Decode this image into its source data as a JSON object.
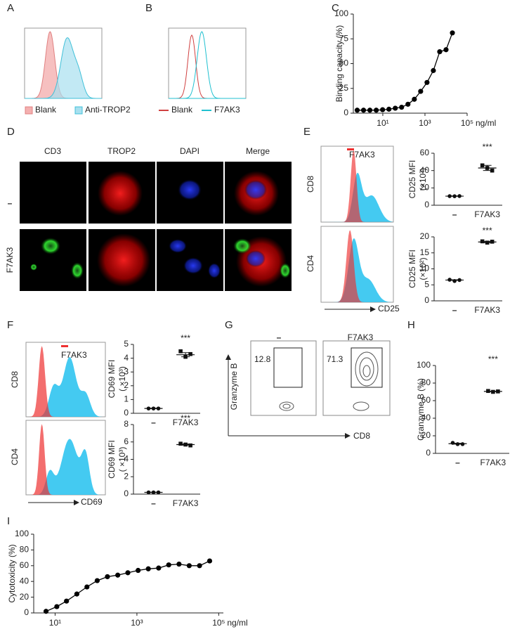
{
  "panel_labels": [
    "A",
    "B",
    "C",
    "D",
    "E",
    "F",
    "G",
    "H",
    "I"
  ],
  "histograms": {
    "A": {
      "legend": [
        "Blank",
        "Anti-TROP2"
      ]
    },
    "B": {
      "legend": [
        "Blank",
        "F7AK3"
      ]
    },
    "E": {
      "legend": "F7AK3",
      "rows": [
        "CD8",
        "CD4"
      ],
      "xlabel": "CD25"
    },
    "F": {
      "legend": "F7AK3",
      "rows": [
        "CD8",
        "CD4"
      ],
      "xlabel": "CD69"
    }
  },
  "microscopy": {
    "columns": [
      "CD3",
      "TROP2",
      "DAPI",
      "Merge"
    ],
    "rows": [
      "–",
      "F7AK3"
    ]
  },
  "flow": {
    "ylabel": "Granzyme B",
    "xlabel": "CD8",
    "plots": [
      {
        "title": "–",
        "gate": "12.8"
      },
      {
        "title": "F7AK3",
        "gate": "71.3"
      }
    ]
  },
  "chart_data": [
    {
      "type": "line",
      "x": [
        0.61,
        1.22,
        2.44,
        4.88,
        9.77,
        19.5,
        39,
        78,
        156,
        313,
        625,
        1250,
        2500,
        5000,
        10000,
        20000
      ],
      "values": [
        3,
        3,
        3,
        3,
        3.5,
        4,
        5,
        6,
        9,
        14,
        22,
        31,
        43,
        62,
        64,
        81
      ],
      "xlim": [
        0.4,
        100000
      ],
      "xticks": [
        {
          "value": 10,
          "label": "10¹"
        },
        {
          "value": 1000,
          "label": "10³"
        },
        {
          "value": 100000,
          "label": "10⁵"
        }
      ],
      "x_label": "ng/ml",
      "ylim": [
        0,
        100
      ],
      "yticks": [
        0,
        25,
        50,
        75,
        100
      ],
      "ylabel": "Binding capacity (%)",
      "log_x": true,
      "color": "#000000"
    },
    {
      "type": "dot",
      "ylabel": "CD25 MFI",
      "ylabel_unit": "(×10²)",
      "categories": [
        "–",
        "F7AK3"
      ],
      "points": [
        [
          10.5,
          10.4,
          10.6
        ],
        [
          46,
          43,
          40
        ]
      ],
      "means": [
        10.5,
        43
      ],
      "errors": [
        0.2,
        3
      ],
      "ylim": [
        0,
        60
      ],
      "yticks": [
        0,
        20,
        40,
        60
      ],
      "annotation": "***"
    },
    {
      "type": "dot",
      "ylabel": "CD25 MFI",
      "ylabel_unit": "(×10²)",
      "categories": [
        "–",
        "F7AK3"
      ],
      "points": [
        [
          6.6,
          6.2,
          6.5
        ],
        [
          18.6,
          18.2,
          18.5
        ]
      ],
      "means": [
        6.5,
        18.4
      ],
      "errors": [
        0.1,
        0.2
      ],
      "ylim": [
        0,
        20
      ],
      "yticks": [
        0,
        5,
        10,
        15,
        20
      ],
      "annotation": "***"
    },
    {
      "type": "dot",
      "ylabel": "CD69 MFI",
      "ylabel_unit": "( ×10³)",
      "categories": [
        "–",
        "F7AK3"
      ],
      "points": [
        [
          0.35,
          0.35,
          0.35
        ],
        [
          4.5,
          4.1,
          4.3
        ]
      ],
      "means": [
        0.35,
        4.25
      ],
      "errors": [
        0.02,
        0.15
      ],
      "ylim": [
        0,
        5
      ],
      "yticks": [
        0,
        1,
        2,
        3,
        4,
        5
      ],
      "annotation": "***"
    },
    {
      "type": "dot",
      "ylabel": "CD69 MFI",
      "ylabel_unit": "( ×10³)",
      "categories": [
        "–",
        "F7AK3"
      ],
      "points": [
        [
          0.2,
          0.2,
          0.2
        ],
        [
          5.8,
          5.7,
          5.6
        ]
      ],
      "means": [
        0.2,
        5.7
      ],
      "errors": [
        0.02,
        0.06
      ],
      "ylim": [
        0,
        8
      ],
      "yticks": [
        0,
        2,
        4,
        6,
        8
      ],
      "annotation": "***"
    },
    {
      "type": "dot",
      "ylabel": "Granzyme B (%)",
      "categories": [
        "–",
        "F7AK3"
      ],
      "points": [
        [
          12,
          10.5,
          10.5
        ],
        [
          71,
          70,
          70.5
        ]
      ],
      "means": [
        11,
        70.5
      ],
      "errors": [
        0.5,
        0.3
      ],
      "ylim": [
        0,
        100
      ],
      "yticks": [
        0,
        20,
        40,
        60,
        80,
        100
      ],
      "annotation": "***"
    },
    {
      "type": "line",
      "x": [
        6,
        11,
        19,
        34,
        60,
        107,
        190,
        340,
        600,
        1070,
        1900,
        3400,
        6000,
        10700,
        19000,
        34000,
        60000
      ],
      "values": [
        2,
        8,
        15,
        24,
        33,
        41,
        46,
        48,
        51,
        54,
        56,
        57,
        61,
        62,
        60,
        60,
        66
      ],
      "xlim": [
        3,
        130000
      ],
      "xticks": [
        {
          "value": 10,
          "label": "10¹"
        },
        {
          "value": 1000,
          "label": "10³"
        },
        {
          "value": 100000,
          "label": "10⁵"
        }
      ],
      "x_label": "ng/ml",
      "ylim": [
        0,
        100
      ],
      "yticks": [
        0,
        20,
        40,
        60,
        80,
        100
      ],
      "ylabel": "Cytotoxicity (%)",
      "log_x": true,
      "color": "#000000"
    }
  ]
}
